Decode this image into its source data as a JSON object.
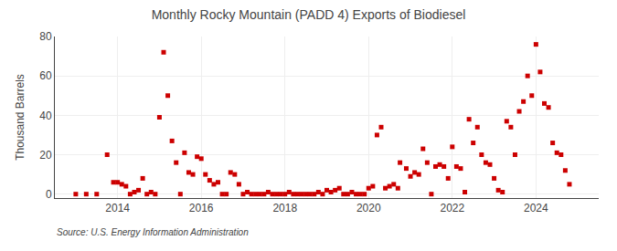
{
  "chart_data": {
    "type": "scatter",
    "title": "Monthly Rocky Mountain (PADD 4) Exports of Biodiesel",
    "ylabel": "Thousand Barrels",
    "annotations": [
      "Source: U.S. Energy Information Administration"
    ],
    "color": "#cc0000",
    "marker": "square",
    "grid": true,
    "xlim": [
      2012.5,
      2025.5
    ],
    "xticks": [
      2014,
      2016,
      2018,
      2020,
      2022,
      2024
    ],
    "ylim": [
      -2,
      80
    ],
    "yticks": [
      0,
      20,
      40,
      60,
      80
    ],
    "x": [
      2013.0,
      2013.25,
      2013.5,
      2013.75,
      2013.9,
      2014.0,
      2014.1,
      2014.2,
      2014.3,
      2014.4,
      2014.5,
      2014.6,
      2014.7,
      2014.8,
      2014.9,
      2015.0,
      2015.1,
      2015.2,
      2015.3,
      2015.4,
      2015.5,
      2015.6,
      2015.7,
      2015.8,
      2015.9,
      2016.0,
      2016.1,
      2016.2,
      2016.3,
      2016.4,
      2016.5,
      2016.6,
      2016.7,
      2016.8,
      2016.9,
      2017.0,
      2017.1,
      2017.2,
      2017.3,
      2017.4,
      2017.5,
      2017.6,
      2017.7,
      2017.8,
      2017.9,
      2018.0,
      2018.1,
      2018.2,
      2018.3,
      2018.4,
      2018.5,
      2018.6,
      2018.7,
      2018.8,
      2018.9,
      2019.0,
      2019.1,
      2019.2,
      2019.3,
      2019.4,
      2019.5,
      2019.6,
      2019.7,
      2019.8,
      2019.9,
      2020.0,
      2020.1,
      2020.2,
      2020.3,
      2020.4,
      2020.5,
      2020.6,
      2020.7,
      2020.75,
      2020.9,
      2021.0,
      2021.1,
      2021.2,
      2021.3,
      2021.4,
      2021.5,
      2021.6,
      2021.7,
      2021.8,
      2021.9,
      2022.0,
      2022.1,
      2022.2,
      2022.3,
      2022.4,
      2022.5,
      2022.6,
      2022.7,
      2022.8,
      2022.9,
      2023.0,
      2023.1,
      2023.2,
      2023.3,
      2023.4,
      2023.5,
      2023.6,
      2023.7,
      2023.8,
      2023.9,
      2024.0,
      2024.1,
      2024.2,
      2024.3,
      2024.4,
      2024.5,
      2024.6,
      2024.7,
      2024.8
    ],
    "values": [
      0,
      0,
      0,
      20,
      6,
      6,
      5,
      4,
      0,
      1,
      2,
      8,
      0,
      1,
      0,
      39,
      72,
      50,
      27,
      16,
      0,
      21,
      11,
      10,
      19,
      18,
      10,
      7,
      5,
      6,
      0,
      0,
      11,
      10,
      5,
      0,
      1,
      0,
      0,
      0,
      0,
      1,
      0,
      0,
      0,
      0,
      1,
      0,
      0,
      0,
      0,
      0,
      0,
      1,
      0,
      2,
      1,
      2,
      3,
      0,
      0,
      1,
      0,
      0,
      0,
      3,
      4,
      30,
      34,
      3,
      4,
      5,
      3,
      16,
      13,
      9,
      11,
      10,
      23,
      16,
      0,
      14,
      15,
      14,
      8,
      24,
      14,
      13,
      1,
      38,
      26,
      34,
      20,
      16,
      15,
      8,
      2,
      1,
      37,
      34,
      20,
      42,
      47,
      60,
      50,
      76,
      62,
      46,
      44,
      26,
      21,
      20,
      12,
      5
    ]
  }
}
